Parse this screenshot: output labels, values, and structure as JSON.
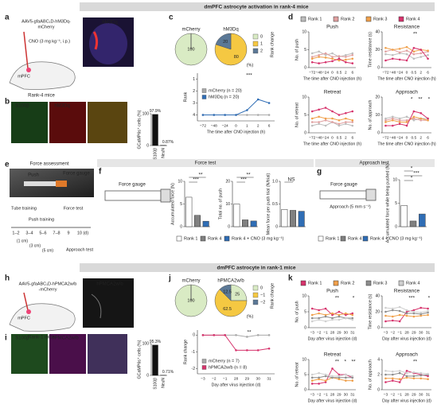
{
  "panel_labels": [
    "a",
    "b",
    "c",
    "d",
    "e",
    "f",
    "g",
    "h",
    "i",
    "j",
    "k"
  ],
  "texts": [
    "dmPFC astrocyte activation in rank-4 mice",
    "dmPFC astrocyte in rank-1 mice",
    "Force test",
    "Approach test",
    "AAV5-gfaABC₁D-hM3Dq-",
    "mCherry",
    "CNO (3 mg kg⁻¹, i.p.)",
    "mPFC",
    "Rank-4 mice",
    "hM3Dq",
    "S100β",
    "hM3Dq",
    "Force assessment",
    "Push",
    "Force gauge",
    "Tube training",
    "Force test",
    "Push training",
    "1–2",
    "3–4",
    "5–6",
    "7–8",
    "9",
    "10 (d)",
    "(1 cm)",
    "(3 cm)",
    "(5 cm)",
    "Approach test",
    "Force gauge",
    "Force gauge",
    "Approach (5 mm s⁻¹)",
    "AAV5-gfaABC₁D-hPMCA2w/b",
    "-mCherry",
    "mPFC",
    "Rank-1 mice",
    "hPMCA2w/b",
    "S100β",
    "hPMCA2w/b"
  ],
  "rank_legend_d": {
    "names": [
      "Rank 1",
      "Rank 2",
      "Rank 3",
      "Rank 4"
    ],
    "colors": [
      "#bdbdbd",
      "#e0a0a0",
      "#f0a04b",
      "#d6336c"
    ]
  },
  "rank_legend_k": {
    "names": [
      "Rank 1",
      "Rank 2",
      "Rank 3",
      "Rank 4"
    ],
    "colors": [
      "#d6336c",
      "#f0a04b",
      "#8c8c8c",
      "#cfcfcf"
    ]
  },
  "force_legend": {
    "names": [
      "Rank 1",
      "Rank 4",
      "Rank 4 + CNO (3 mg kg⁻¹)"
    ],
    "colors": [
      "#ffffff",
      "#808080",
      "#2f6db5"
    ]
  },
  "chart_data": [
    {
      "type": "bar",
      "ylabel": "GCaMP6s⁺ cells (%)",
      "categories": [
        "S100β",
        "NeuN"
      ],
      "values": [
        97.9,
        0.87
      ],
      "value_labels": [
        "97.9%",
        "0.87%"
      ],
      "color": "#111111",
      "ylim": [
        0,
        100
      ],
      "yticks": [
        0,
        100
      ]
    },
    {
      "type": "pie",
      "legend_title": "Rank change",
      "unit": "(%)",
      "categories": [
        "0",
        "1",
        "2"
      ],
      "colors": [
        "#d9ebc4",
        "#f5c842",
        "#5b7896"
      ],
      "pies": [
        {
          "name": "mCherry",
          "values": [
            100,
            0,
            0
          ]
        },
        {
          "name": "hM3Dq",
          "values": [
            0,
            80,
            20
          ]
        }
      ]
    },
    {
      "type": "line",
      "ylabel": "Rank",
      "xlabel": "The time after CNO injection (h)",
      "categories": [
        "−72",
        "−48",
        "−24",
        "0",
        "1",
        "2",
        "6"
      ],
      "ylim": [
        4.5,
        0.5
      ],
      "yticks": [
        1,
        2,
        3,
        4
      ],
      "legend": "upper left",
      "annotations": [
        "***"
      ],
      "series": [
        {
          "name": "mCherry (n = 20)",
          "color": "#aaaaaa",
          "values": [
            4,
            4,
            4,
            4,
            4,
            4,
            4
          ]
        },
        {
          "name": "hM3Dq (n = 20)",
          "color": "#2f6db5",
          "values": [
            4,
            4,
            4,
            4,
            3.6,
            2.7,
            3.0
          ]
        }
      ]
    },
    {
      "type": "line",
      "title": "Push",
      "ylabel": "No. of push",
      "xlabel": "The time after CNO injection (h)",
      "categories": [
        "−72",
        "−48",
        "−24",
        "0",
        "0.5",
        "2",
        "6"
      ],
      "ylim": [
        0,
        10
      ],
      "yticks": [
        0,
        5,
        10
      ],
      "annotations": [],
      "series": [
        {
          "color": "#bdbdbd",
          "values": [
            4,
            4.5,
            3.5,
            4,
            3,
            3.5,
            4
          ]
        },
        {
          "color": "#e0a0a0",
          "values": [
            3,
            3.5,
            4,
            3,
            3.2,
            3,
            3.5
          ]
        },
        {
          "color": "#f0a04b",
          "values": [
            2.5,
            3,
            2.8,
            2.5,
            2,
            2.2,
            2.5
          ]
        },
        {
          "color": "#d6336c",
          "values": [
            1.5,
            1.2,
            1.5,
            1.8,
            2.5,
            1.5,
            1.2
          ]
        }
      ]
    },
    {
      "type": "line",
      "title": "Resistance",
      "ylabel": "Time resistance (s)",
      "xlabel": "The time after CNO injection (h)",
      "categories": [
        "−72",
        "−48",
        "−24",
        "0",
        "0.5",
        "2",
        "6"
      ],
      "ylim": [
        0,
        40
      ],
      "yticks": [
        0,
        20,
        40
      ],
      "annotations": [
        "**"
      ],
      "series": [
        {
          "color": "#bdbdbd",
          "values": [
            15,
            14,
            16,
            15,
            10,
            12,
            14
          ]
        },
        {
          "color": "#e0a0a0",
          "values": [
            18,
            20,
            17,
            19,
            15,
            16,
            18
          ]
        },
        {
          "color": "#f0a04b",
          "values": [
            22,
            20,
            21,
            23,
            18,
            20,
            19
          ]
        },
        {
          "color": "#d6336c",
          "values": [
            8,
            10,
            9,
            8,
            22,
            20,
            10
          ]
        }
      ]
    },
    {
      "type": "line",
      "title": "Retreat",
      "ylabel": "No. of retreat",
      "xlabel": "The time after CNO injection (h)",
      "categories": [
        "−72",
        "−48",
        "−24",
        "0",
        "0.5",
        "2",
        "6"
      ],
      "ylim": [
        0,
        10
      ],
      "yticks": [
        0,
        5,
        10
      ],
      "annotations": [],
      "series": [
        {
          "color": "#bdbdbd",
          "values": [
            2,
            2.5,
            2,
            3,
            2,
            2.5,
            2
          ]
        },
        {
          "color": "#e0a0a0",
          "values": [
            3,
            3,
            3.5,
            3,
            2.5,
            3,
            3
          ]
        },
        {
          "color": "#f0a04b",
          "values": [
            4,
            4.5,
            4,
            4,
            3.5,
            4,
            3.5
          ]
        },
        {
          "color": "#d6336c",
          "values": [
            6,
            6.5,
            7,
            6,
            5,
            5.5,
            6
          ]
        }
      ]
    },
    {
      "type": "line",
      "title": "Approach",
      "ylabel": "No. of approach",
      "xlabel": "The time after CNO injection (h)",
      "categories": [
        "−72",
        "−48",
        "−24",
        "0",
        "0.5",
        "2",
        "6"
      ],
      "ylim": [
        0,
        20
      ],
      "yticks": [
        0,
        10,
        20
      ],
      "annotations": [
        "*",
        "**",
        "*"
      ],
      "series": [
        {
          "color": "#bdbdbd",
          "values": [
            8,
            9,
            8,
            9,
            7,
            8,
            8
          ]
        },
        {
          "color": "#e0a0a0",
          "values": [
            7,
            8,
            7,
            7,
            8,
            7,
            7
          ]
        },
        {
          "color": "#f0a04b",
          "values": [
            6,
            7,
            6,
            6,
            9,
            8,
            7
          ]
        },
        {
          "color": "#d6336c",
          "values": [
            4,
            4,
            5,
            4,
            12,
            11,
            8
          ]
        }
      ]
    },
    {
      "type": "bar",
      "ylabel": "Accumulated force (N)",
      "values": [
        6.5,
        2.5,
        1.2
      ],
      "ylim": [
        0,
        10
      ],
      "yticks": [
        0,
        5,
        10
      ],
      "annotations": [
        "***",
        "**"
      ]
    },
    {
      "type": "bar",
      "ylabel": "Total no. of push",
      "values": [
        10,
        3,
        2.5
      ],
      "ylim": [
        0,
        20
      ],
      "yticks": [
        0,
        10,
        20
      ],
      "annotations": [
        "***",
        "**"
      ]
    },
    {
      "type": "bar",
      "ylabel": "Mean force per push trial (N/trial)",
      "values": [
        0.38,
        0.36,
        0.34
      ],
      "ylim": [
        0,
        1
      ],
      "yticks": [
        0,
        0.5,
        {
          "value": 1,
          "label": "1.0"
        }
      ],
      "annotations": [
        "NS"
      ]
    },
    {
      "type": "bar",
      "ylabel": "Accumulated force while being pushed (N)",
      "values": [
        4.5,
        1.2,
        2.7
      ],
      "ylim": [
        0,
        10
      ],
      "yticks": [
        0,
        5,
        10
      ],
      "annotations": [
        "*",
        "***",
        "*"
      ]
    },
    {
      "type": "bar",
      "ylabel": "GCaMP6s⁺ cells (%)",
      "categories": [
        "S100β",
        "NeuN"
      ],
      "values": [
        95.3,
        0.71
      ],
      "value_labels": [
        "95.3%",
        "0.71%"
      ],
      "color": "#111111",
      "ylim": [
        0,
        100
      ],
      "yticks": [
        0,
        100
      ]
    },
    {
      "type": "pie",
      "legend_title": "Rank change",
      "unit": "(%)",
      "categories": [
        "0",
        "−1",
        "−2"
      ],
      "colors": [
        "#d9ebc4",
        "#f5c842",
        "#5b7896"
      ],
      "pies": [
        {
          "name": "mCherry",
          "values": [
            100,
            0,
            0
          ]
        },
        {
          "name": "hPMCA2w/b",
          "values": [
            25,
            62.5,
            12.5
          ]
        }
      ]
    },
    {
      "type": "line",
      "ylabel": "Rank change",
      "xlabel": "Day after virus injection (d)",
      "categories": [
        "−3",
        "−2",
        "−1",
        "28",
        "29",
        "30",
        "31"
      ],
      "ylim": [
        -2.3,
        0.3
      ],
      "yticks": [
        0,
        -1,
        -2
      ],
      "legend": "lower left",
      "annotations": [
        "**"
      ],
      "series": [
        {
          "name": "mCherry (n = 7)",
          "color": "#aaaaaa",
          "values": [
            0,
            0,
            0,
            0,
            -0.1,
            0,
            0
          ]
        },
        {
          "name": "hPMCA2w/b (n = 8)",
          "color": "#d6336c",
          "values": [
            0,
            0,
            0,
            -0.9,
            -0.9,
            -0.9,
            -0.8
          ]
        }
      ]
    },
    {
      "type": "line",
      "title": "Push",
      "ylabel": "No. of push",
      "xlabel": "Day after virus injection (d)",
      "categories": [
        "−3",
        "−2",
        "−1",
        "28",
        "29",
        "30",
        "31"
      ],
      "ylim": [
        0,
        10
      ],
      "yticks": [
        0,
        5,
        10
      ],
      "annotations": [
        "**",
        "*"
      ],
      "series": [
        {
          "color": "#d6336c",
          "values": [
            6,
            5.5,
            6,
            4,
            5,
            4,
            4.5
          ]
        },
        {
          "color": "#f0a04b",
          "values": [
            4,
            4.5,
            4,
            4.5,
            4,
            4.5,
            4
          ]
        },
        {
          "color": "#8c8c8c",
          "values": [
            3,
            3,
            3.5,
            3,
            3.5,
            3,
            3
          ]
        },
        {
          "color": "#cfcfcf",
          "values": [
            2,
            2.5,
            2,
            2.5,
            2.5,
            3,
            2.5
          ]
        }
      ]
    },
    {
      "type": "line",
      "title": "Resistance",
      "ylabel": "Time resistance (s)",
      "xlabel": "Day after virus injection (d)",
      "categories": [
        "−3",
        "−2",
        "−1",
        "28",
        "29",
        "30",
        "31"
      ],
      "ylim": [
        0,
        40
      ],
      "yticks": [
        0,
        20,
        40
      ],
      "annotations": [
        "***",
        "*"
      ],
      "series": [
        {
          "color": "#d6336c",
          "values": [
            8,
            9,
            8,
            20,
            22,
            25,
            24
          ]
        },
        {
          "color": "#f0a04b",
          "values": [
            15,
            14,
            16,
            15,
            14,
            15,
            16
          ]
        },
        {
          "color": "#8c8c8c",
          "values": [
            20,
            22,
            21,
            18,
            18,
            17,
            19
          ]
        },
        {
          "color": "#cfcfcf",
          "values": [
            25,
            24,
            26,
            22,
            20,
            19,
            21
          ]
        }
      ]
    },
    {
      "type": "line",
      "title": "Retreat",
      "ylabel": "No. of retreat",
      "xlabel": "Day after virus injection (d)",
      "categories": [
        "−3",
        "−2",
        "−1",
        "28",
        "29",
        "30",
        "31"
      ],
      "ylim": [
        0,
        10
      ],
      "yticks": [
        0,
        5,
        10
      ],
      "annotations": [
        "**",
        "*",
        "**"
      ],
      "series": [
        {
          "color": "#d6336c",
          "values": [
            2,
            2,
            2.5,
            7,
            5,
            5,
            4
          ]
        },
        {
          "color": "#f0a04b",
          "values": [
            3,
            3.5,
            3,
            4,
            3.5,
            3,
            3
          ]
        },
        {
          "color": "#8c8c8c",
          "values": [
            4,
            4,
            4.5,
            4,
            4,
            4,
            4
          ]
        },
        {
          "color": "#cfcfcf",
          "values": [
            5,
            5.5,
            5,
            4.5,
            4.5,
            5,
            4.5
          ]
        }
      ]
    },
    {
      "type": "line",
      "title": "Approach",
      "ylabel": "No. of approach",
      "xlabel": "Day after virus injection (d)",
      "categories": [
        "−3",
        "−2",
        "−1",
        "28",
        "29",
        "30",
        "31"
      ],
      "ylim": [
        0,
        4
      ],
      "yticks": [
        0,
        2,
        4
      ],
      "annotations": [
        "**"
      ],
      "series": [
        {
          "color": "#d6336c",
          "values": [
            1,
            1.2,
            1,
            2.5,
            2.2,
            2,
            1.8
          ]
        },
        {
          "color": "#f0a04b",
          "values": [
            1.5,
            1.5,
            1.4,
            1.6,
            1.5,
            1.5,
            1.4
          ]
        },
        {
          "color": "#8c8c8c",
          "values": [
            2,
            2,
            2.2,
            1.8,
            1.8,
            1.9,
            2
          ]
        },
        {
          "color": "#cfcfcf",
          "values": [
            2.5,
            2.4,
            2.5,
            2.2,
            2.3,
            2.2,
            2.1
          ]
        }
      ]
    }
  ]
}
